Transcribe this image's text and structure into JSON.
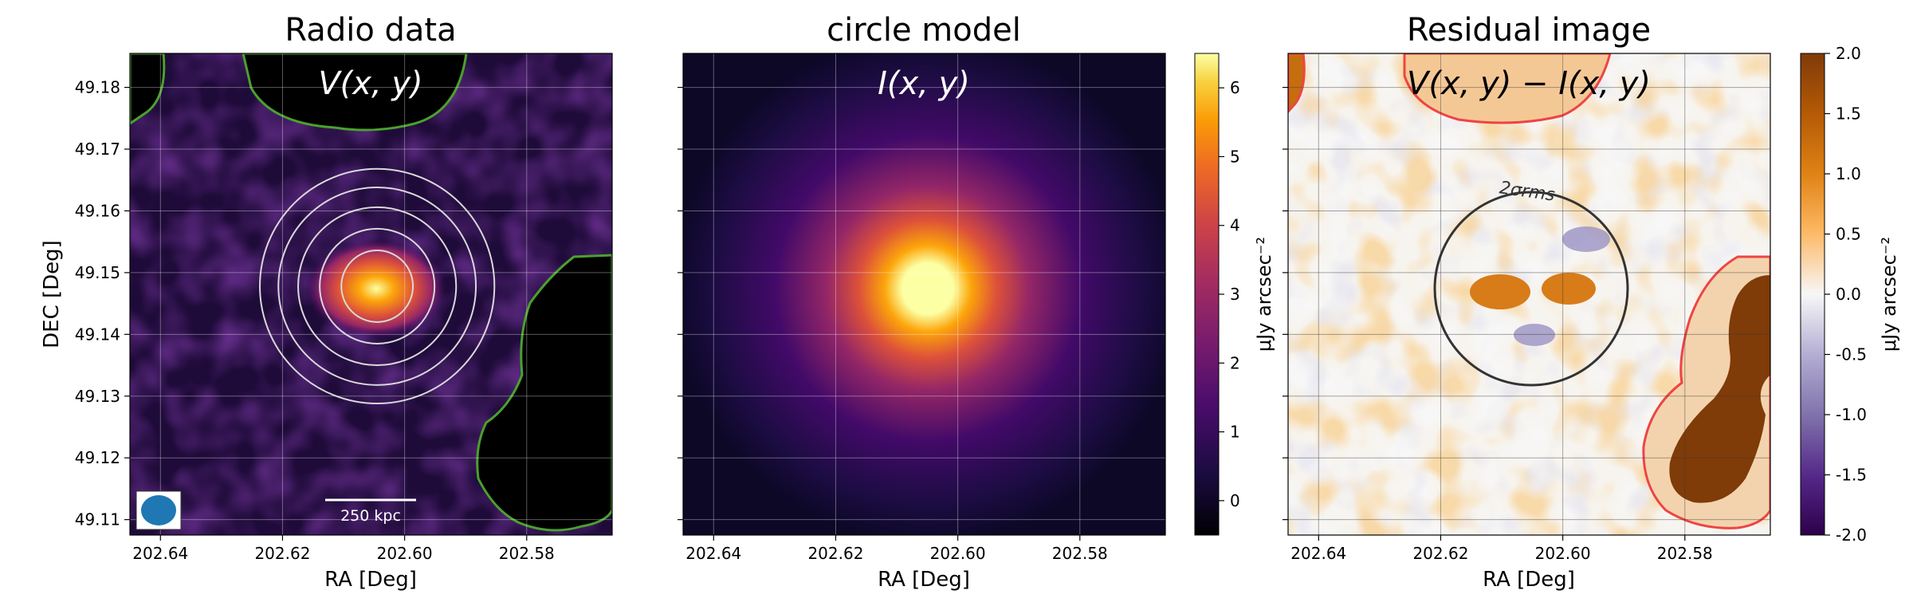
{
  "chart_data": [
    {
      "type": "heatmap",
      "title": "Radio data",
      "overlay_label": "V(x, y)",
      "xlabel": "RA [Deg]",
      "ylabel": "DEC [Deg]",
      "xlim": [
        202.645,
        202.566
      ],
      "ylim": [
        49.1075,
        49.1855
      ],
      "xticks": [
        202.64,
        202.62,
        202.6,
        202.58
      ],
      "yticks": [
        49.11,
        49.12,
        49.13,
        49.14,
        49.15,
        49.16,
        49.17,
        49.18
      ],
      "grid": true,
      "colormap": "inferno",
      "source_peak": {
        "ra": 202.604,
        "dec": 49.1473,
        "value": 6.4
      },
      "rings": {
        "center_ra": 202.6045,
        "center_dec": 49.1478,
        "radii_deg": [
          0.0058,
          0.0093,
          0.0128,
          0.016,
          0.019
        ],
        "color": "#d9d9d9"
      },
      "mask_contour_color": "#4aa12d",
      "scale_bar_label": "250 kpc",
      "beam_color": "#1f77b4"
    },
    {
      "type": "heatmap",
      "title": "circle model",
      "overlay_label": "I(x, y)",
      "xlabel": "RA [Deg]",
      "xlim": [
        202.645,
        202.566
      ],
      "ylim": [
        49.1075,
        49.1855
      ],
      "xticks": [
        202.64,
        202.62,
        202.6,
        202.58
      ],
      "grid": true,
      "colormap": "inferno",
      "model_center": {
        "ra": 202.6045,
        "dec": 49.1475
      },
      "colorbar": {
        "label": "μJy arcsec⁻²",
        "min": -0.5,
        "max": 6.5,
        "ticks": [
          0,
          1,
          2,
          3,
          4,
          5,
          6
        ]
      }
    },
    {
      "type": "heatmap",
      "title": "Residual image",
      "overlay_label": "V(x, y) − I(x, y)",
      "xlabel": "RA [Deg]",
      "xlim": [
        202.645,
        202.566
      ],
      "ylim": [
        49.1075,
        49.1855
      ],
      "xticks": [
        202.64,
        202.62,
        202.6,
        202.58
      ],
      "grid": true,
      "colormap": "PuOr_r",
      "circle_label": "2σrms",
      "circle": {
        "center_ra": 202.6045,
        "center_dec": 49.1475,
        "radius_deg": 0.0157,
        "color": "#333333"
      },
      "mask_contour_color": "#ee4444",
      "colorbar": {
        "label": "μJy arcsec⁻²",
        "min": -2.0,
        "max": 2.0,
        "ticks": [
          -2.0,
          -1.5,
          -1.0,
          -0.5,
          0.0,
          0.5,
          1.0,
          1.5,
          2.0
        ]
      }
    }
  ]
}
